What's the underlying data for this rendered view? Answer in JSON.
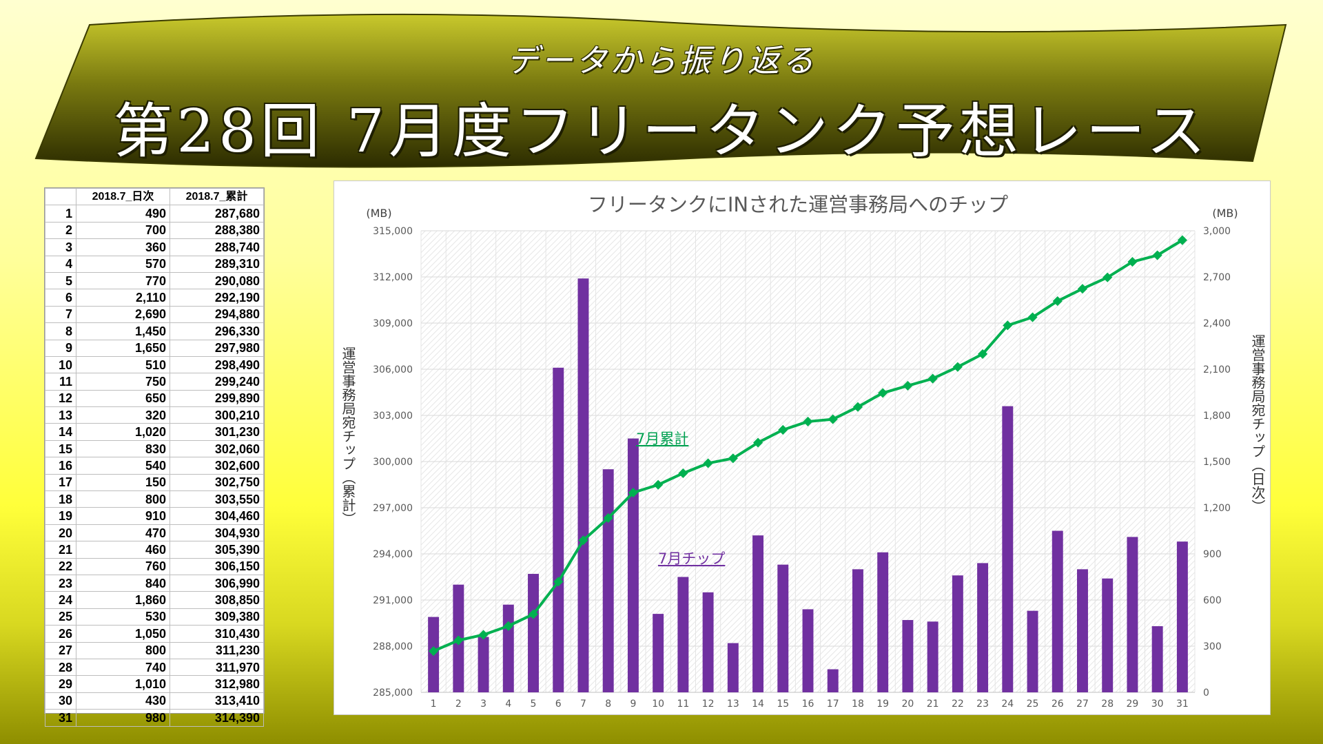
{
  "banner": {
    "subtitle": "データから振り返る",
    "title": "第28回 7月度フリータンク予想レース"
  },
  "table": {
    "headers": [
      "",
      "2018.7_日次",
      "2018.7_累計"
    ],
    "rows": [
      [
        "1",
        "490",
        "287,680"
      ],
      [
        "2",
        "700",
        "288,380"
      ],
      [
        "3",
        "360",
        "288,740"
      ],
      [
        "4",
        "570",
        "289,310"
      ],
      [
        "5",
        "770",
        "290,080"
      ],
      [
        "6",
        "2,110",
        "292,190"
      ],
      [
        "7",
        "2,690",
        "294,880"
      ],
      [
        "8",
        "1,450",
        "296,330"
      ],
      [
        "9",
        "1,650",
        "297,980"
      ],
      [
        "10",
        "510",
        "298,490"
      ],
      [
        "11",
        "750",
        "299,240"
      ],
      [
        "12",
        "650",
        "299,890"
      ],
      [
        "13",
        "320",
        "300,210"
      ],
      [
        "14",
        "1,020",
        "301,230"
      ],
      [
        "15",
        "830",
        "302,060"
      ],
      [
        "16",
        "540",
        "302,600"
      ],
      [
        "17",
        "150",
        "302,750"
      ],
      [
        "18",
        "800",
        "303,550"
      ],
      [
        "19",
        "910",
        "304,460"
      ],
      [
        "20",
        "470",
        "304,930"
      ],
      [
        "21",
        "460",
        "305,390"
      ],
      [
        "22",
        "760",
        "306,150"
      ],
      [
        "23",
        "840",
        "306,990"
      ],
      [
        "24",
        "1,860",
        "308,850"
      ],
      [
        "25",
        "530",
        "309,380"
      ],
      [
        "26",
        "1,050",
        "310,430"
      ],
      [
        "27",
        "800",
        "311,230"
      ],
      [
        "28",
        "740",
        "311,970"
      ],
      [
        "29",
        "1,010",
        "312,980"
      ],
      [
        "30",
        "430",
        "313,410"
      ],
      [
        "31",
        "980",
        "314,390"
      ]
    ]
  },
  "chart_data": {
    "type": "bar+line",
    "title": "フリータンクにINされた運営事務局へのチップ",
    "categories": [
      "1",
      "2",
      "3",
      "4",
      "5",
      "6",
      "7",
      "8",
      "9",
      "10",
      "11",
      "12",
      "13",
      "14",
      "15",
      "16",
      "17",
      "18",
      "19",
      "20",
      "21",
      "22",
      "23",
      "24",
      "25",
      "26",
      "27",
      "28",
      "29",
      "30",
      "31"
    ],
    "series": [
      {
        "name": "7月チップ",
        "type": "bar",
        "axis": "right",
        "color": "#7030a0",
        "values": [
          490,
          700,
          360,
          570,
          770,
          2110,
          2690,
          1450,
          1650,
          510,
          750,
          650,
          320,
          1020,
          830,
          540,
          150,
          800,
          910,
          470,
          460,
          760,
          840,
          1860,
          530,
          1050,
          800,
          740,
          1010,
          430,
          980
        ]
      },
      {
        "name": "7月累計",
        "type": "line",
        "axis": "left",
        "color": "#00b050",
        "values": [
          287680,
          288380,
          288740,
          289310,
          290080,
          292190,
          294880,
          296330,
          297980,
          298490,
          299240,
          299890,
          300210,
          301230,
          302060,
          302600,
          302750,
          303550,
          304460,
          304930,
          305390,
          306150,
          306990,
          308850,
          309380,
          310430,
          311230,
          311970,
          312980,
          313410,
          314390
        ]
      }
    ],
    "left_axis": {
      "label": "運営事務局宛チップ（累計）",
      "unit": "(MB)",
      "range": [
        285000,
        315000
      ],
      "ticks": [
        "285,000",
        "288,000",
        "291,000",
        "294,000",
        "297,000",
        "300,000",
        "303,000",
        "306,000",
        "309,000",
        "312,000",
        "315,000"
      ]
    },
    "right_axis": {
      "label": "運営事務局宛チップ（日次）",
      "unit": "(MB)",
      "range": [
        0,
        3000
      ],
      "ticks": [
        "0",
        "300",
        "600",
        "900",
        "1,200",
        "1,500",
        "1,800",
        "2,100",
        "2,400",
        "2,700",
        "3,000"
      ]
    },
    "grid": true,
    "legend": "inline labels"
  }
}
